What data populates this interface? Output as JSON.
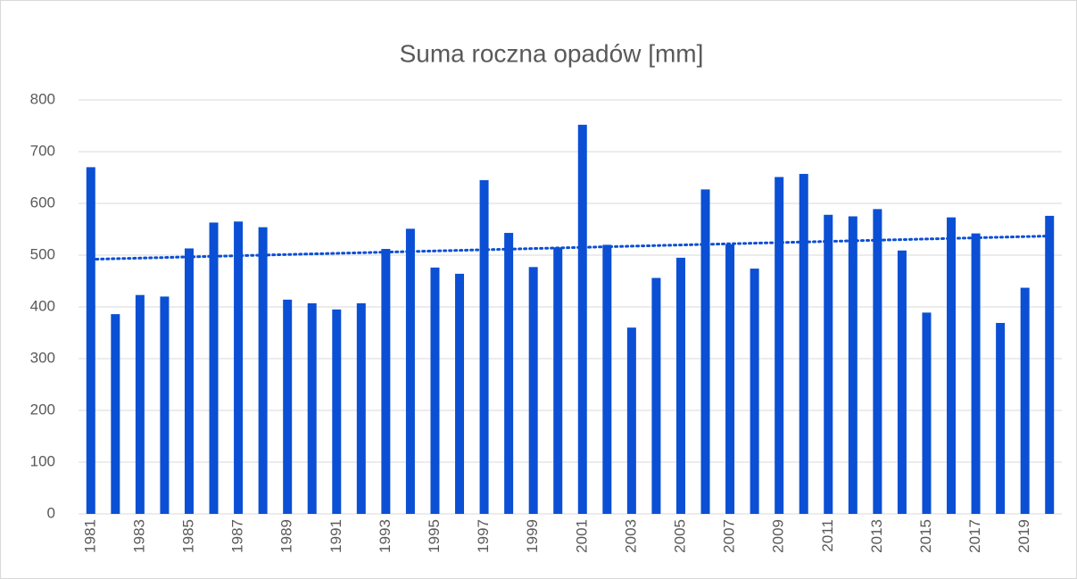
{
  "chart_data": {
    "type": "bar",
    "title": "Suma roczna opadów [mm]",
    "categories": [
      "1981",
      null,
      "1983",
      null,
      "1985",
      null,
      "1987",
      null,
      "1989",
      null,
      "1991",
      null,
      "1993",
      null,
      "1995",
      null,
      "1997",
      null,
      "1999",
      null,
      "2001",
      null,
      "2003",
      null,
      "2005",
      null,
      "2007",
      null,
      "2009",
      null,
      "2011",
      null,
      "2013",
      null,
      "2015",
      null,
      "2017",
      null,
      "2019",
      null
    ],
    "values": [
      670,
      386,
      423,
      420,
      513,
      563,
      565,
      554,
      414,
      407,
      395,
      407,
      512,
      551,
      476,
      464,
      645,
      543,
      477,
      515,
      752,
      520,
      360,
      456,
      495,
      627,
      521,
      474,
      651,
      657,
      578,
      575,
      589,
      509,
      389,
      573,
      542,
      369,
      437,
      576
    ],
    "color": "#0b4fd4",
    "trendline": {
      "start": 492,
      "end": 537
    },
    "ylim": [
      0,
      800
    ],
    "yticks": [
      0,
      100,
      200,
      300,
      400,
      500,
      600,
      700,
      800
    ],
    "grid": true
  }
}
